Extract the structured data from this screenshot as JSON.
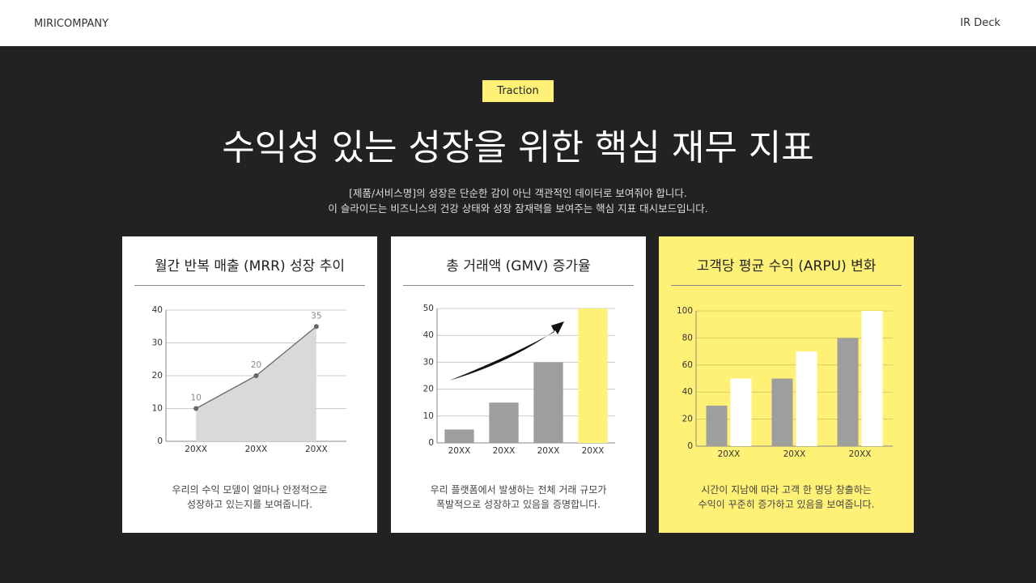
{
  "header": {
    "brand": "MIRICOMPANY",
    "label": "IR Deck"
  },
  "badge": "Traction",
  "title": "수익성 있는 성장을 위한 핵심 재무 지표",
  "subtitle": [
    "[제품/서비스명]의 성장은 단순한 감이 아닌 객관적인 데이터로 보여줘야 합니다.",
    "이 슬라이드는 비즈니스의 건강 상태와 성장 잠재력을 보여주는 핵심 지표 대시보드입니다."
  ],
  "chart_data": [
    {
      "type": "area",
      "title": "월간 반복 매출 (MRR) 성장 추이",
      "categories": [
        "20XX",
        "20XX",
        "20XX"
      ],
      "values": [
        10,
        20,
        35
      ],
      "color": "#d9d9d9",
      "line_color": "#666666",
      "ylim": [
        0,
        40
      ],
      "yticks": [
        0,
        10,
        20,
        30,
        40
      ],
      "grid": true,
      "caption": [
        "우리의 수익 모델이 얼마나 안정적으로",
        "성장하고 있는지를 보여줍니다."
      ]
    },
    {
      "type": "bar",
      "title": "총 거래액 (GMV) 증가율",
      "categories": [
        "20XX",
        "20XX",
        "20XX",
        "20XX"
      ],
      "values": [
        5,
        15,
        30,
        50
      ],
      "colors": [
        "#9e9e9e",
        "#9e9e9e",
        "#9e9e9e",
        "#fff176"
      ],
      "ylim": [
        0,
        50
      ],
      "yticks": [
        0,
        10,
        20,
        30,
        40,
        50
      ],
      "grid": true,
      "caption": [
        "우리 플랫폼에서 발생하는 전체 거래 규모가",
        "폭발적으로 성장하고 있음을 증명합니다."
      ]
    },
    {
      "type": "grouped_bar",
      "title": "고객당 평균 수익 (ARPU) 변화",
      "categories": [
        "20XX",
        "20XX",
        "20XX"
      ],
      "series": [
        {
          "color": "#9e9e9e",
          "values": [
            30,
            50,
            80
          ]
        },
        {
          "color": "#ffffff",
          "values": [
            50,
            70,
            100
          ]
        }
      ],
      "ylim": [
        0,
        100
      ],
      "yticks": [
        0,
        20,
        40,
        60,
        80,
        100
      ],
      "grid": true,
      "caption": [
        "시간이 지남에 따라 고객 한 명당 창출하는",
        "수익이 꾸준히 증가하고 있음을 보여줍니다."
      ]
    }
  ]
}
